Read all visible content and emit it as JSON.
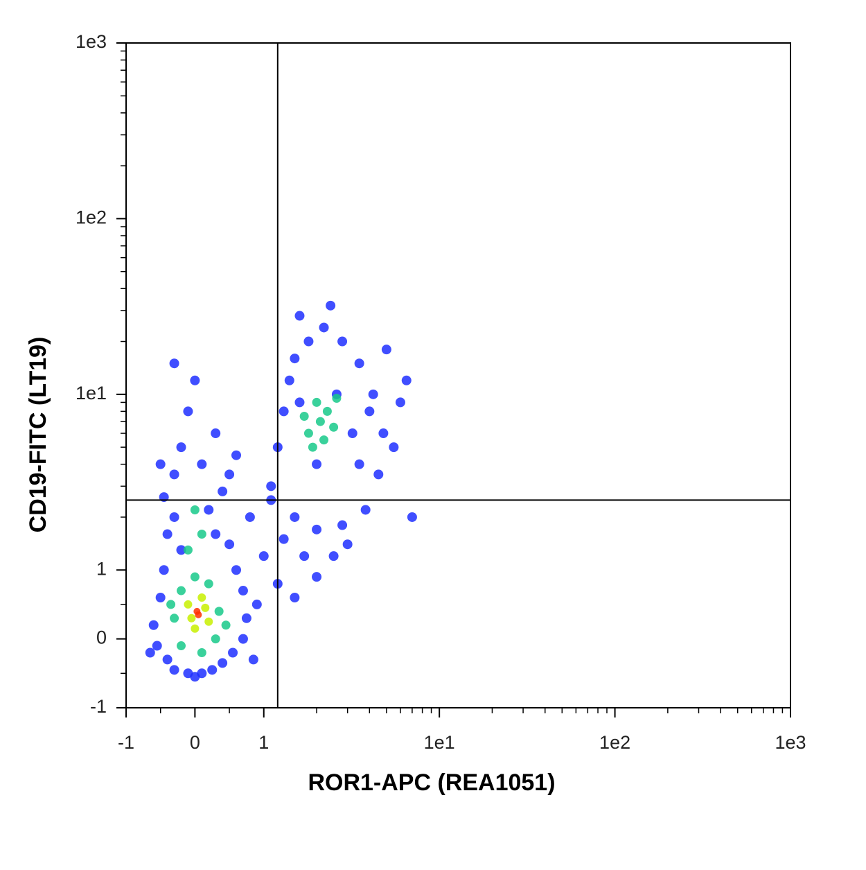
{
  "chart_data": {
    "type": "scatter",
    "xlabel": "ROR1-APC (REA1051)",
    "ylabel": "CD19-FITC (LT19)",
    "xscale": "biexponential",
    "yscale": "biexponential",
    "xlim": [
      -1,
      1000
    ],
    "ylim": [
      -1,
      1000
    ],
    "xticks": [
      -1,
      0,
      1,
      {
        "value": 10,
        "label": "1e1"
      },
      {
        "value": 100,
        "label": "1e2"
      },
      {
        "value": 1000,
        "label": "1e3"
      }
    ],
    "yticks": [
      -1,
      0,
      1,
      {
        "value": 10,
        "label": "1e1"
      },
      {
        "value": 100,
        "label": "1e2"
      },
      {
        "value": 1000,
        "label": "1e3"
      }
    ],
    "xminorticks": [
      -0.5,
      0.5,
      2,
      3,
      4,
      5,
      6,
      7,
      8,
      9,
      20,
      30,
      40,
      50,
      60,
      70,
      80,
      90,
      200,
      300,
      400,
      500,
      600,
      700,
      800,
      900
    ],
    "yminorticks": [
      -0.5,
      0.5,
      2,
      3,
      4,
      5,
      6,
      7,
      8,
      9,
      20,
      30,
      40,
      50,
      60,
      70,
      80,
      90,
      200,
      300,
      400,
      500,
      600,
      700,
      800,
      900
    ],
    "quadrant_gate": {
      "x": 1.2,
      "y": 2.5
    },
    "series": [
      {
        "color": "#1f2fff",
        "x": [
          -0.6,
          -0.55,
          -0.5,
          -0.45,
          -0.4,
          -0.3,
          -0.2,
          -0.1,
          0,
          0.1,
          0.25,
          0.4,
          0.55,
          0.7,
          0.75,
          0.7,
          0.6,
          0.5,
          0.3,
          -0.4,
          -0.3,
          0.2,
          -0.45,
          0.4,
          -0.3,
          0.1,
          -0.2,
          0.3,
          -0.1,
          0.5,
          0.9,
          0.85,
          1.0,
          -0.65,
          0.6,
          -0.5,
          0.0,
          -0.3,
          0.8,
          1.1,
          1.1,
          1.2,
          1.3,
          1.4,
          1.5,
          1.8,
          2.2,
          2.8,
          3.5,
          4.2,
          4.8,
          4.5,
          3.8,
          2.8,
          2,
          1.5,
          1.3,
          1.7,
          2.5,
          3,
          3.2,
          2.6,
          1.6,
          2,
          3.5,
          4,
          5.5,
          6,
          1.2,
          1.5,
          2,
          7,
          6.5,
          2.4,
          1.6,
          5
        ],
        "y": [
          0.2,
          -0.1,
          0.6,
          1,
          -0.3,
          -0.45,
          1.3,
          -0.5,
          -0.55,
          -0.5,
          -0.45,
          -0.35,
          -0.2,
          0,
          0.3,
          0.7,
          1,
          1.4,
          1.6,
          1.6,
          2,
          2.2,
          2.6,
          2.8,
          3.5,
          4,
          5,
          6,
          8,
          3.5,
          0.5,
          -0.3,
          1.2,
          -0.2,
          4.5,
          4,
          12,
          15,
          2,
          2.5,
          3,
          5,
          8,
          12,
          16,
          20,
          24,
          20,
          15,
          10,
          6,
          3.5,
          2.2,
          1.8,
          1.7,
          2,
          1.5,
          1.2,
          1.2,
          1.4,
          6,
          10,
          9,
          4,
          4,
          8,
          5,
          9,
          0.8,
          0.6,
          0.9,
          2,
          12,
          32,
          28,
          18
        ]
      },
      {
        "color": "#17c98a",
        "x": [
          -0.3,
          -0.2,
          -0.2,
          0,
          0.2,
          0.35,
          0.3,
          0.1,
          -0.1,
          0.1,
          0,
          -0.35,
          0.45,
          1.8,
          2.1,
          2.3,
          2,
          2.5,
          1.9,
          2.6,
          2.2,
          1.7
        ],
        "y": [
          0.3,
          0.7,
          -0.1,
          0.9,
          0.8,
          0.4,
          0,
          -0.2,
          1.3,
          1.6,
          2.2,
          0.5,
          0.2,
          6,
          7,
          8,
          9,
          6.5,
          5,
          9.5,
          5.5,
          7.5
        ]
      },
      {
        "color": "#c8f000",
        "x": [
          -0.05,
          0.15,
          0,
          0.1,
          -0.1,
          0.2
        ],
        "y": [
          0.3,
          0.45,
          0.15,
          0.6,
          0.5,
          0.25
        ]
      },
      {
        "color": "#ff3000",
        "x": [
          0.05,
          0.03
        ],
        "y": [
          0.35,
          0.4
        ]
      }
    ]
  }
}
